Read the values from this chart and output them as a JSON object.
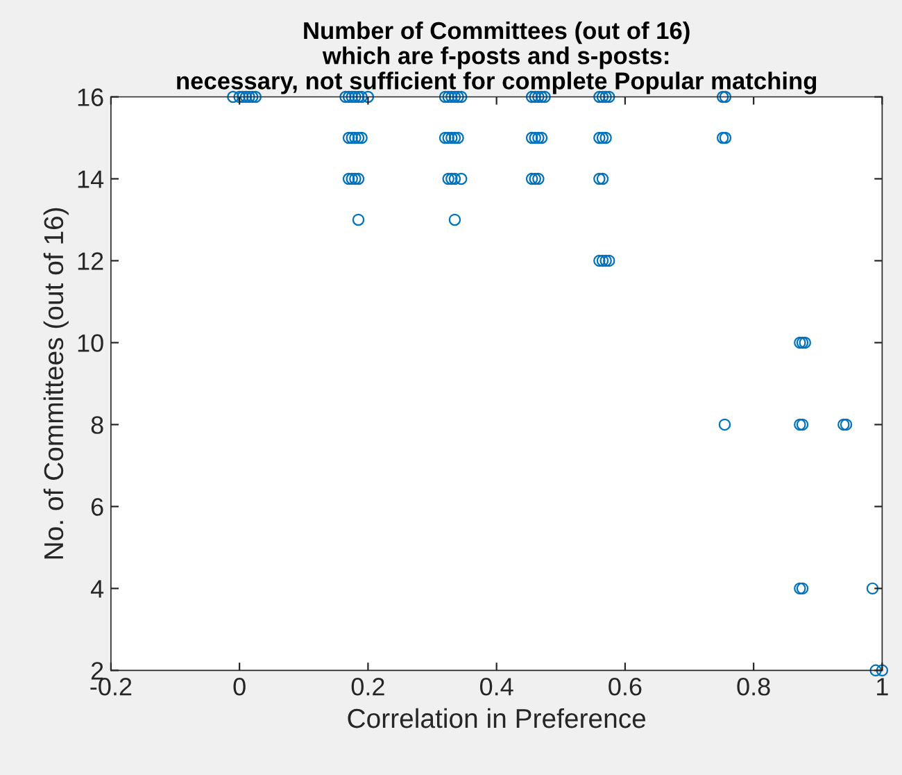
{
  "chart_data": {
    "type": "scatter",
    "title": "Number of Committees (out of 16)\nwhich are f-posts and s-posts:\nnecessary, not sufficient for complete Popular matching",
    "xlabel": "Correlation in Preference",
    "ylabel": "No. of Committees (out of 16)",
    "marker": "circle",
    "grid": false,
    "xlim": [
      -0.2,
      1
    ],
    "xticks": [
      -0.2,
      0,
      0.2,
      0.4,
      0.6,
      0.8,
      1
    ],
    "ylim": [
      2,
      16
    ],
    "yticks": [
      2,
      4,
      6,
      8,
      10,
      12,
      14,
      16
    ],
    "series": [
      {
        "color": "#0072bd",
        "x": [
          -0.01,
          0,
          0.005,
          0.01,
          0.015,
          0.02,
          0.025,
          0.165,
          0.17,
          0.175,
          0.18,
          0.185,
          0.19,
          0.2,
          0.32,
          0.325,
          0.33,
          0.335,
          0.34,
          0.345,
          0.455,
          0.46,
          0.465,
          0.47,
          0.475,
          0.56,
          0.565,
          0.57,
          0.575,
          0.752,
          0.756,
          0.17,
          0.175,
          0.18,
          0.185,
          0.19,
          0.32,
          0.325,
          0.33,
          0.335,
          0.34,
          0.455,
          0.46,
          0.465,
          0.47,
          0.56,
          0.565,
          0.57,
          0.752,
          0.756,
          0.17,
          0.175,
          0.18,
          0.185,
          0.325,
          0.33,
          0.335,
          0.345,
          0.455,
          0.46,
          0.465,
          0.56,
          0.565,
          0.185,
          0.335,
          0.56,
          0.565,
          0.57,
          0.575,
          0.872,
          0.876,
          0.88,
          0.755,
          0.872,
          0.876,
          0.94,
          0.944,
          0.872,
          0.876,
          0.985,
          0.99,
          1.0
        ],
        "values": [
          16,
          16,
          16,
          16,
          16,
          16,
          16,
          16,
          16,
          16,
          16,
          16,
          16,
          16,
          16,
          16,
          16,
          16,
          16,
          16,
          16,
          16,
          16,
          16,
          16,
          16,
          16,
          16,
          16,
          16,
          16,
          15,
          15,
          15,
          15,
          15,
          15,
          15,
          15,
          15,
          15,
          15,
          15,
          15,
          15,
          15,
          15,
          15,
          15,
          15,
          14,
          14,
          14,
          14,
          14,
          14,
          14,
          14,
          14,
          14,
          14,
          14,
          14,
          13,
          13,
          12,
          12,
          12,
          12,
          10,
          10,
          10,
          8,
          8,
          8,
          8,
          8,
          4,
          4,
          4,
          2,
          2
        ]
      }
    ]
  }
}
